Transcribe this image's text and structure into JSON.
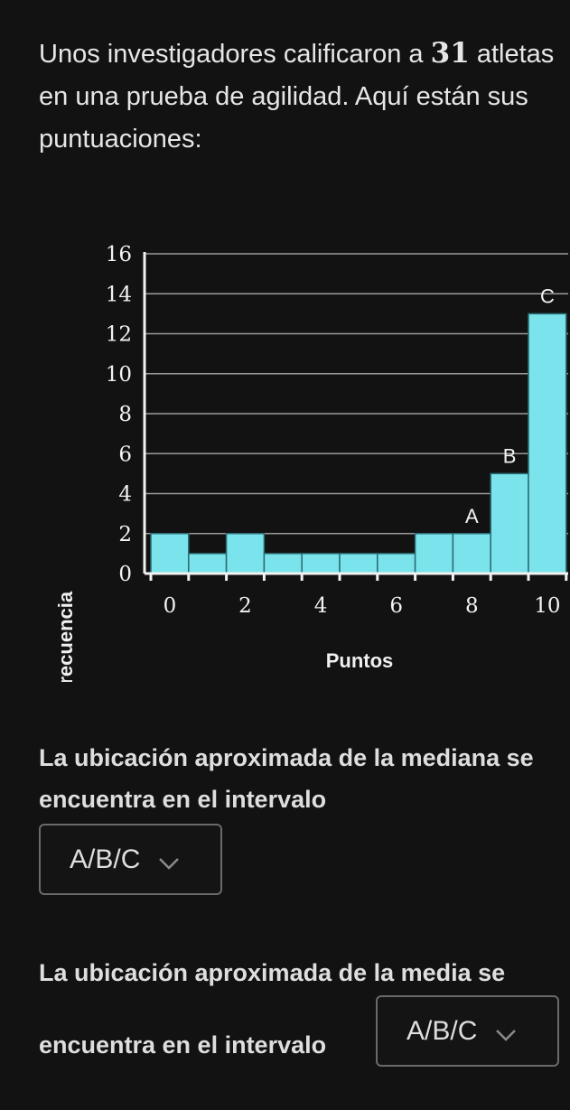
{
  "intro": {
    "before": "Unos investigadores calificaron a ",
    "number": "31",
    "after": " atletas en una prueba de agilidad. Aquí están sus puntuaciones:"
  },
  "chart_data": {
    "type": "bar",
    "xlabel": "Puntos",
    "ylabel": "Frecuencia",
    "ylim": [
      0,
      16
    ],
    "xlim": [
      0,
      11
    ],
    "y_ticks": [
      0,
      2,
      4,
      6,
      8,
      10,
      12,
      14,
      16
    ],
    "x_ticks": [
      0,
      2,
      4,
      6,
      8,
      10
    ],
    "grid": true,
    "bar_color": "#7ae3eb",
    "bins": [
      {
        "x0": 0,
        "x1": 1,
        "value": 2
      },
      {
        "x0": 1,
        "x1": 2,
        "value": 1
      },
      {
        "x0": 2,
        "x1": 3,
        "value": 2
      },
      {
        "x0": 3,
        "x1": 4,
        "value": 1
      },
      {
        "x0": 4,
        "x1": 5,
        "value": 1
      },
      {
        "x0": 5,
        "x1": 6,
        "value": 1
      },
      {
        "x0": 6,
        "x1": 7,
        "value": 1
      },
      {
        "x0": 7,
        "x1": 8,
        "value": 2
      },
      {
        "x0": 8,
        "x1": 9,
        "value": 2,
        "label": "A"
      },
      {
        "x0": 9,
        "x1": 10,
        "value": 5,
        "label": "B"
      },
      {
        "x0": 10,
        "x1": 11,
        "value": 13,
        "label": "C"
      }
    ]
  },
  "question1": {
    "text": "La ubicación aproximada de la mediana se encuentra en el intervalo",
    "dropdown_value": "A/B/C"
  },
  "question2": {
    "text_line1": "La ubicación aproximada de la media se",
    "text_line2": "encuentra en el intervalo",
    "dropdown_value": "A/B/C"
  }
}
